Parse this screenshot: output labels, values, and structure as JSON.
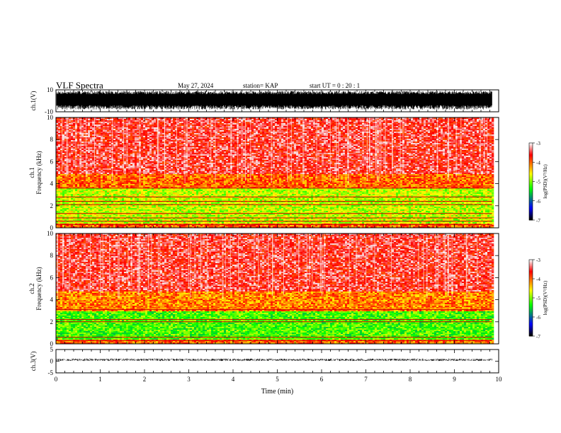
{
  "header": {
    "title": "VLF Spectra",
    "date": "May 27, 2024",
    "station": "station= KAP",
    "start": "start  UT =   0  : 20 : 1"
  },
  "colors": {
    "colormap": [
      "#f8f8f8",
      "#ff0000",
      "#ffff00",
      "#00ff00",
      "#0000ff",
      "#000000"
    ],
    "trace": "#000000"
  },
  "chart_data": [
    {
      "type": "line",
      "panel": "ch1-waveform",
      "ylabel": "ch.1(V)",
      "ylim": [
        -10,
        10
      ],
      "yticks": [
        10,
        -10
      ],
      "xlim": [
        0,
        10
      ],
      "x_end": 9.85,
      "envelope_approx": {
        "upper": [
          6,
          9
        ],
        "lower": [
          -8,
          -4
        ]
      }
    },
    {
      "type": "heatmap",
      "panel": "ch1-spectrogram",
      "ylabel": "ch.1\nFrequency (kHz)",
      "ylim": [
        0,
        10
      ],
      "yticks": [
        0,
        2,
        4,
        6,
        8,
        10
      ],
      "xlim": [
        0,
        10
      ],
      "x_end": 9.85,
      "colorbar": {
        "label": "log(PSD)(V²/Hz)",
        "range": [
          -7,
          -3
        ],
        "ticks": [
          -3,
          -4,
          -5,
          -6,
          -7
        ]
      },
      "bands_kHz": [
        {
          "from": 0,
          "to": 0.5,
          "level": -4.0
        },
        {
          "from": 0.5,
          "to": 3.6,
          "level": -4.8
        },
        {
          "from": 3.6,
          "to": 5.0,
          "level": -4.0
        },
        {
          "from": 5.0,
          "to": 10,
          "level": -3.5
        }
      ],
      "lines_kHz": [
        0.3,
        0.6,
        0.9,
        1.3,
        2.1,
        2.4,
        2.8,
        3.6
      ]
    },
    {
      "type": "heatmap",
      "panel": "ch2-spectrogram",
      "ylabel": "ch.2\nFrequency (kHz)",
      "ylim": [
        0,
        10
      ],
      "yticks": [
        0,
        2,
        4,
        6,
        8,
        10
      ],
      "xlim": [
        0,
        10
      ],
      "x_end": 9.85,
      "colorbar": {
        "label": "log(PSD)(V²/Hz)",
        "range": [
          -7,
          -3
        ],
        "ticks": [
          -3,
          -4,
          -5,
          -6,
          -7
        ]
      },
      "bands_kHz": [
        {
          "from": 0,
          "to": 0.4,
          "level": -4.0
        },
        {
          "from": 0.4,
          "to": 3.0,
          "level": -5.2
        },
        {
          "from": 3.0,
          "to": 4.8,
          "level": -4.1
        },
        {
          "from": 4.8,
          "to": 10,
          "level": -3.5
        }
      ],
      "lines_kHz": [
        0.3,
        0.6,
        2.0,
        2.2,
        3.1
      ]
    },
    {
      "type": "line",
      "panel": "ch3-waveform",
      "ylabel": "ch.3(V)",
      "ylim": [
        -5,
        5
      ],
      "yticks": [
        5,
        0,
        -5
      ],
      "xlim": [
        0,
        10
      ],
      "x_end": 9.85,
      "mean": 0.6,
      "spread": 0.5
    }
  ],
  "xaxis": {
    "label": "Time (min)",
    "ticks": [
      0,
      1,
      2,
      3,
      4,
      5,
      6,
      7,
      8,
      9,
      10
    ]
  }
}
